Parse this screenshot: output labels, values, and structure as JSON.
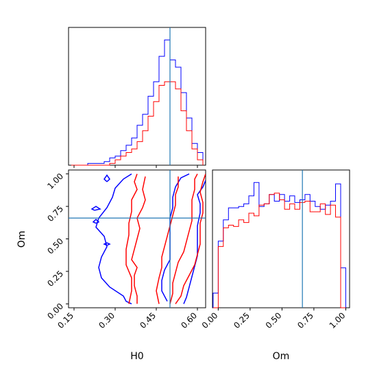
{
  "chart_data": [
    {
      "panel": "H0 marginal",
      "type": "histogram",
      "xlim": [
        0.13,
        0.63
      ],
      "truth_value": 0.5,
      "truth_color": "#1f77b4",
      "bin_edges": [
        0.14,
        0.16,
        0.18,
        0.2,
        0.22,
        0.24,
        0.26,
        0.28,
        0.3,
        0.32,
        0.34,
        0.36,
        0.38,
        0.4,
        0.42,
        0.44,
        0.46,
        0.48,
        0.5,
        0.52,
        0.54,
        0.56,
        0.58,
        0.6,
        0.62
      ],
      "series": [
        {
          "color": "#0000ff",
          "values": [
            0,
            0,
            0,
            1,
            1,
            1,
            2,
            4,
            5,
            8,
            11,
            15,
            22,
            28,
            38,
            46,
            60,
            69,
            58,
            54,
            40,
            26,
            12,
            7
          ]
        },
        {
          "color": "#ff0000",
          "values": [
            0,
            0,
            0,
            0,
            0,
            0,
            0,
            1,
            3,
            5,
            7,
            9,
            13,
            19,
            27,
            35,
            44,
            46,
            46,
            42,
            30,
            19,
            9,
            3
          ]
        }
      ]
    },
    {
      "panel": "H0 vs Om contours",
      "type": "contour",
      "xlabel": "H0",
      "ylabel": "Om",
      "xlim": [
        0.13,
        0.63
      ],
      "ylim": [
        -0.03,
        1.03
      ],
      "x_ticks": [
        "0.15",
        "0.30",
        "0.45",
        "0.60"
      ],
      "y_ticks": [
        "0.00",
        "0.25",
        "0.50",
        "0.75",
        "1.00"
      ],
      "x_tick_values": [
        0.15,
        0.3,
        0.45,
        0.6
      ],
      "y_tick_values": [
        0.0,
        0.25,
        0.5,
        0.75,
        1.0
      ],
      "truth_x": 0.5,
      "truth_y": 0.66,
      "contours": [
        {
          "color": "#0000ff",
          "points": [
            [
              0.36,
              0.0
            ],
            [
              0.34,
              0.02
            ],
            [
              0.33,
              0.06
            ],
            [
              0.28,
              0.13
            ],
            [
              0.25,
              0.2
            ],
            [
              0.24,
              0.28
            ],
            [
              0.25,
              0.36
            ],
            [
              0.27,
              0.44
            ],
            [
              0.26,
              0.52
            ],
            [
              0.23,
              0.59
            ],
            [
              0.24,
              0.66
            ],
            [
              0.27,
              0.74
            ],
            [
              0.29,
              0.82
            ],
            [
              0.3,
              0.89
            ],
            [
              0.33,
              0.96
            ],
            [
              0.36,
              1.0
            ]
          ]
        },
        {
          "color": "#0000ff",
          "points": [
            [
              0.55,
              0.0
            ],
            [
              0.56,
              0.05
            ],
            [
              0.57,
              0.13
            ],
            [
              0.58,
              0.21
            ],
            [
              0.59,
              0.29
            ],
            [
              0.6,
              0.37
            ],
            [
              0.6,
              0.45
            ],
            [
              0.6,
              0.52
            ],
            [
              0.6,
              0.6
            ],
            [
              0.61,
              0.7
            ],
            [
              0.61,
              0.77
            ],
            [
              0.6,
              0.84
            ],
            [
              0.62,
              0.9
            ],
            [
              0.63,
              0.95
            ]
          ]
        },
        {
          "color": "#0000ff",
          "points": [
            [
              0.49,
              0.02
            ],
            [
              0.47,
              0.1
            ],
            [
              0.47,
              0.18
            ],
            [
              0.48,
              0.26
            ],
            [
              0.5,
              0.34
            ],
            [
              0.5,
              0.42
            ],
            [
              0.5,
              0.5
            ],
            [
              0.5,
              0.58
            ],
            [
              0.5,
              0.66
            ],
            [
              0.51,
              0.74
            ],
            [
              0.51,
              0.82
            ],
            [
              0.52,
              0.9
            ],
            [
              0.54,
              0.97
            ],
            [
              0.57,
              1.0
            ]
          ]
        },
        {
          "color": "#0000ff",
          "points": [
            [
              0.23,
              0.62
            ],
            [
              0.24,
              0.63
            ],
            [
              0.23,
              0.65
            ],
            [
              0.22,
              0.63
            ],
            [
              0.23,
              0.62
            ]
          ]
        },
        {
          "color": "#0000ff",
          "points": [
            [
              0.27,
              0.45
            ],
            [
              0.28,
              0.46
            ],
            [
              0.27,
              0.47
            ],
            [
              0.26,
              0.46
            ],
            [
              0.27,
              0.45
            ]
          ]
        },
        {
          "color": "#0000ff",
          "points": [
            [
              0.225,
              0.72
            ],
            [
              0.245,
              0.73
            ],
            [
              0.23,
              0.75
            ],
            [
              0.215,
              0.73
            ],
            [
              0.225,
              0.72
            ]
          ]
        },
        {
          "color": "#0000ff",
          "points": [
            [
              0.27,
              0.94
            ],
            [
              0.28,
              0.96
            ],
            [
              0.27,
              0.99
            ],
            [
              0.26,
              0.96
            ],
            [
              0.27,
              0.94
            ]
          ]
        },
        {
          "color": "#ff0000",
          "points": [
            [
              0.35,
              0.0
            ],
            [
              0.36,
              0.1
            ],
            [
              0.36,
              0.2
            ],
            [
              0.34,
              0.3
            ],
            [
              0.34,
              0.42
            ],
            [
              0.35,
              0.53
            ],
            [
              0.35,
              0.62
            ],
            [
              0.36,
              0.71
            ],
            [
              0.36,
              0.8
            ],
            [
              0.38,
              0.88
            ],
            [
              0.37,
              0.94
            ],
            [
              0.38,
              1.0
            ]
          ]
        },
        {
          "color": "#ff0000",
          "points": [
            [
              0.41,
              0.98
            ],
            [
              0.4,
              0.88
            ],
            [
              0.41,
              0.8
            ],
            [
              0.4,
              0.74
            ],
            [
              0.38,
              0.66
            ],
            [
              0.39,
              0.58
            ],
            [
              0.38,
              0.5
            ],
            [
              0.37,
              0.42
            ],
            [
              0.36,
              0.34
            ],
            [
              0.38,
              0.28
            ],
            [
              0.37,
              0.22
            ],
            [
              0.37,
              0.14
            ],
            [
              0.38,
              0.06
            ],
            [
              0.38,
              0.0
            ]
          ]
        },
        {
          "color": "#ff0000",
          "points": [
            [
              0.46,
              0.0
            ],
            [
              0.45,
              0.1
            ],
            [
              0.46,
              0.2
            ],
            [
              0.47,
              0.28
            ],
            [
              0.47,
              0.36
            ],
            [
              0.48,
              0.44
            ],
            [
              0.49,
              0.52
            ],
            [
              0.5,
              0.6
            ],
            [
              0.51,
              0.68
            ],
            [
              0.52,
              0.76
            ],
            [
              0.52,
              0.84
            ],
            [
              0.53,
              0.9
            ],
            [
              0.53,
              0.98
            ]
          ]
        },
        {
          "color": "#ff0000",
          "points": [
            [
              0.5,
              0.0
            ],
            [
              0.51,
              0.08
            ],
            [
              0.51,
              0.16
            ],
            [
              0.52,
              0.24
            ],
            [
              0.53,
              0.32
            ],
            [
              0.55,
              0.4
            ],
            [
              0.56,
              0.48
            ],
            [
              0.57,
              0.56
            ],
            [
              0.58,
              0.64
            ],
            [
              0.58,
              0.72
            ],
            [
              0.58,
              0.8
            ],
            [
              0.59,
              0.88
            ],
            [
              0.59,
              0.96
            ],
            [
              0.6,
              1.0
            ]
          ]
        },
        {
          "color": "#ff0000",
          "points": [
            [
              0.52,
              0.0
            ],
            [
              0.54,
              0.06
            ],
            [
              0.55,
              0.14
            ],
            [
              0.57,
              0.22
            ],
            [
              0.59,
              0.3
            ],
            [
              0.6,
              0.38
            ],
            [
              0.61,
              0.46
            ],
            [
              0.61,
              0.54
            ],
            [
              0.61,
              0.62
            ],
            [
              0.62,
              0.7
            ],
            [
              0.62,
              0.78
            ],
            [
              0.61,
              0.86
            ],
            [
              0.62,
              0.94
            ],
            [
              0.63,
              1.0
            ]
          ]
        }
      ]
    },
    {
      "panel": "Om marginal",
      "type": "histogram",
      "xlabel": "Om",
      "xlim": [
        -0.045,
        1.03
      ],
      "x_ticks": [
        "0.00",
        "0.25",
        "0.50",
        "0.75",
        "1.00"
      ],
      "x_tick_values": [
        0.0,
        0.25,
        0.5,
        0.75,
        1.0
      ],
      "truth_value": 0.66,
      "truth_color": "#1f77b4",
      "bin_edges": [
        -0.04,
        0.0,
        0.04,
        0.08,
        0.12,
        0.16,
        0.2,
        0.24,
        0.28,
        0.32,
        0.36,
        0.4,
        0.44,
        0.48,
        0.52,
        0.56,
        0.6,
        0.64,
        0.68,
        0.72,
        0.76,
        0.8,
        0.84,
        0.88,
        0.92,
        0.96,
        1.0
      ],
      "series": [
        {
          "color": "#0000ff",
          "values": [
            0.11,
            0.5,
            0.66,
            0.75,
            0.75,
            0.76,
            0.78,
            0.84,
            0.94,
            0.76,
            0.78,
            0.85,
            0.8,
            0.85,
            0.8,
            0.84,
            0.79,
            0.81,
            0.85,
            0.8,
            0.76,
            0.74,
            0.77,
            0.8,
            0.93,
            0.3
          ]
        },
        {
          "color": "#ff0000",
          "values": [
            0.0,
            0.46,
            0.6,
            0.62,
            0.61,
            0.66,
            0.64,
            0.71,
            0.69,
            0.77,
            0.78,
            0.85,
            0.86,
            0.81,
            0.74,
            0.78,
            0.74,
            0.79,
            0.8,
            0.72,
            0.72,
            0.78,
            0.7,
            0.77,
            0.68,
            0.0
          ]
        }
      ]
    }
  ]
}
